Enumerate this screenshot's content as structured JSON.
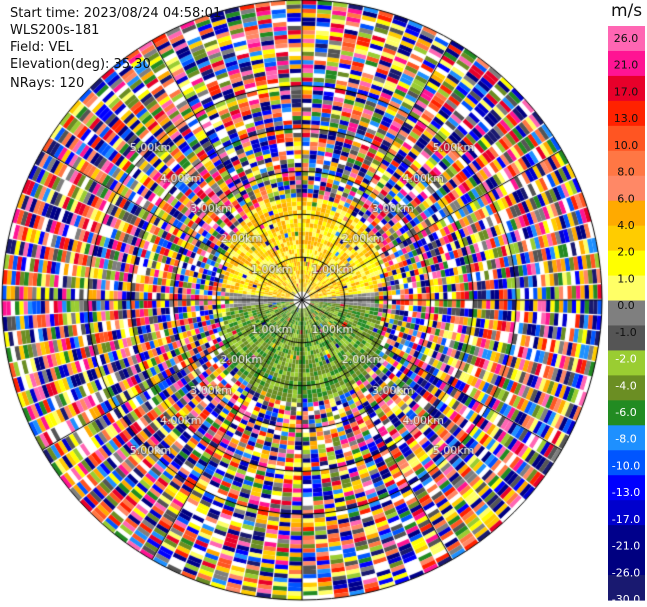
{
  "info": {
    "start_time": "Start time: 2023/08/24 04:58:01",
    "instrument": "WLS200s-181",
    "field": "Field: VEL",
    "elevation": "Elevation(deg): 35.30",
    "nrays": "NRays: 120"
  },
  "colorbar": {
    "unit": "m/s",
    "ticks": [
      "26.0",
      "21.0",
      "17.0",
      "13.0",
      "10.0",
      "8.0",
      "6.0",
      "4.0",
      "2.0",
      "1.0",
      "0.0",
      "-1.0",
      "-2.0",
      "-4.0",
      "-6.0",
      "-8.0",
      "-10.0",
      "-13.0",
      "-17.0",
      "-21.0",
      "-26.0",
      "-30.0"
    ],
    "colors": [
      "#ff66b3",
      "#ff1493",
      "#e8002a",
      "#ff2200",
      "#ff5522",
      "#ff7744",
      "#ff8866",
      "#ffaa00",
      "#ffcc00",
      "#ffff00",
      "#ffff66",
      "#7f7f7f",
      "#555555",
      "#9acd32",
      "#6b8e23",
      "#228b22",
      "#1e90ff",
      "#0055ff",
      "#0000ff",
      "#0000cd",
      "#00008b",
      "#000080",
      "#191970"
    ]
  },
  "chart_data": {
    "type": "ppi",
    "field": "VEL",
    "units": "m/s",
    "nrays": 120,
    "elevation_deg": 35.3,
    "range_ring_labels": [
      "1.00km",
      "2.00km",
      "3.00km",
      "4.00km",
      "5.00km"
    ],
    "range_rings_km": [
      1,
      2,
      3,
      4,
      5
    ],
    "max_range_km": 7.0,
    "spoke_angles_deg": [
      0,
      30,
      60,
      90,
      120,
      150,
      180,
      210,
      240,
      270,
      300,
      330
    ],
    "near_field_pattern": {
      "upper_half": "positive velocities (yellow / orange, ~2 to 8 m/s)",
      "lower_half": "negative velocities (green, ~-2 to -6 m/s)",
      "clean_range_km": 2.5
    }
  }
}
